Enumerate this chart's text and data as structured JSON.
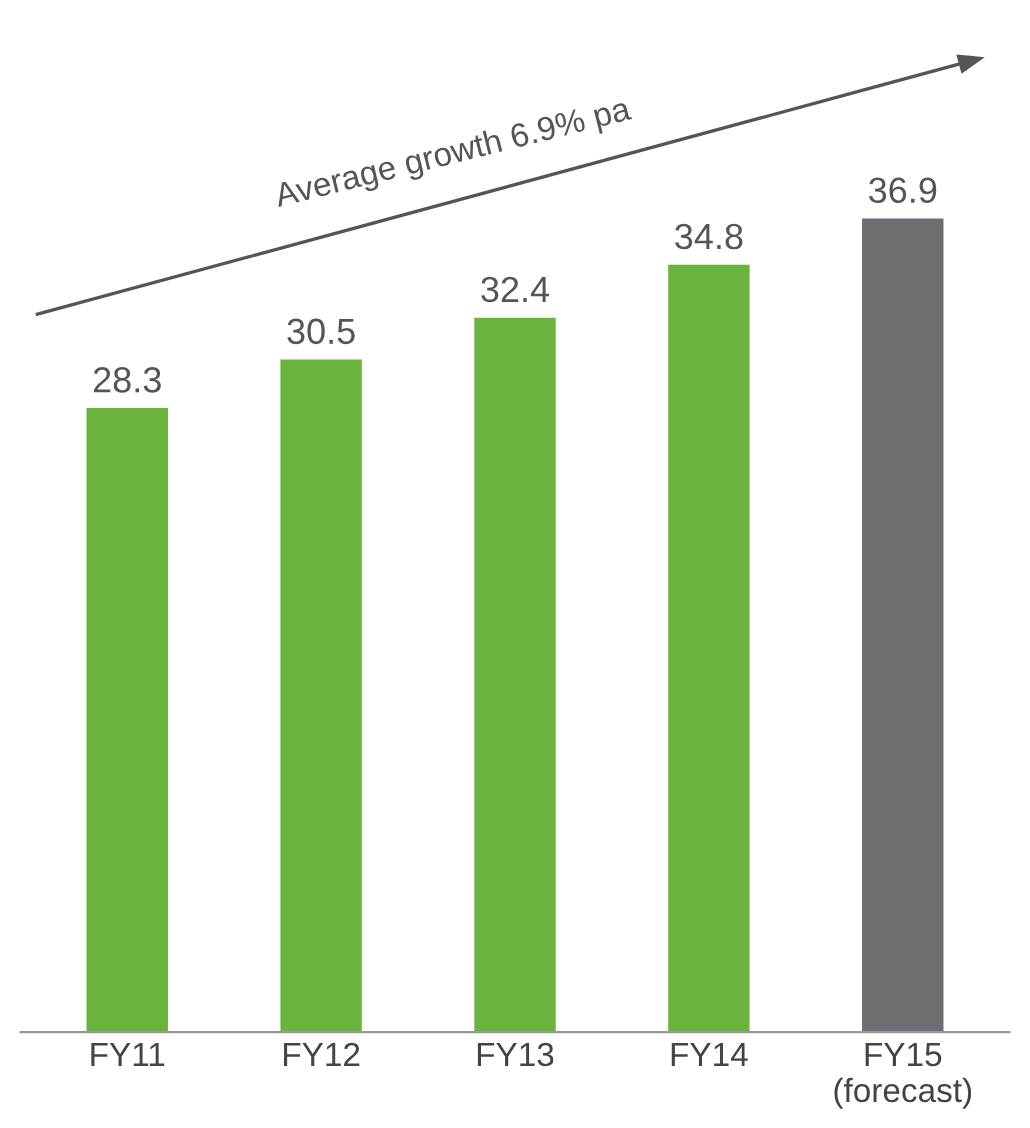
{
  "chart_data": {
    "type": "bar",
    "categories": [
      "FY11",
      "FY12",
      "FY13",
      "FY14",
      "FY15\n(forecast)"
    ],
    "values": [
      28.3,
      30.5,
      32.4,
      34.8,
      36.9
    ],
    "colors": [
      "#6ab43e",
      "#6ab43e",
      "#6ab43e",
      "#6ab43e",
      "#6d6e71"
    ],
    "data_labels": true,
    "tick_labels": "x",
    "grid": false,
    "legend": false,
    "annotations": [
      "Average growth 6.9% pa"
    ]
  }
}
